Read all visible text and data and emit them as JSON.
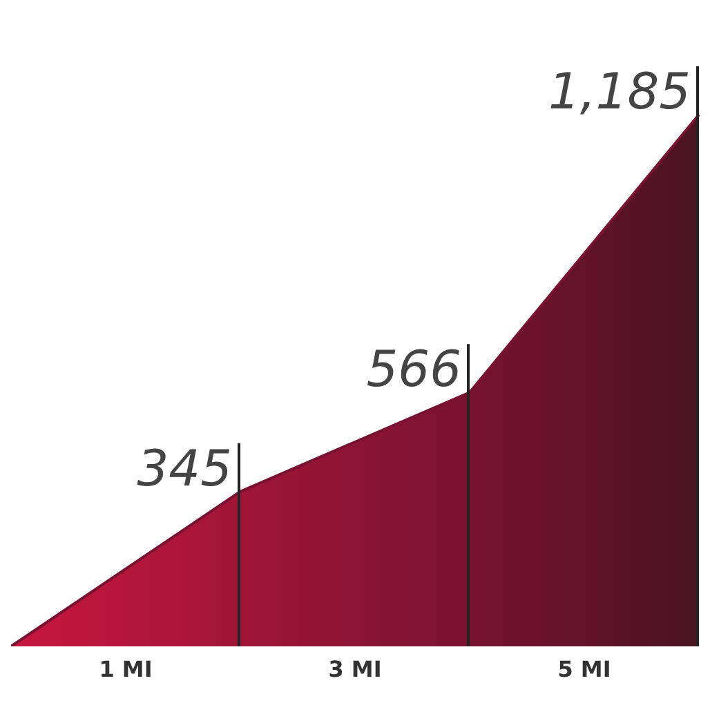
{
  "chart_data": {
    "type": "area",
    "categories": [
      null,
      null,
      null,
      null
    ],
    "values": [
      0,
      345,
      566,
      1185
    ],
    "value_labels": [
      null,
      "345",
      "566",
      "1,185"
    ],
    "color": "#781230",
    "colors": [
      "#c8163f",
      "#a01537",
      "#781230",
      "#4a141f"
    ],
    "annotations": [
      "1 MI",
      "3 MI",
      "5 MI"
    ],
    "grid": false,
    "legend": false
  }
}
